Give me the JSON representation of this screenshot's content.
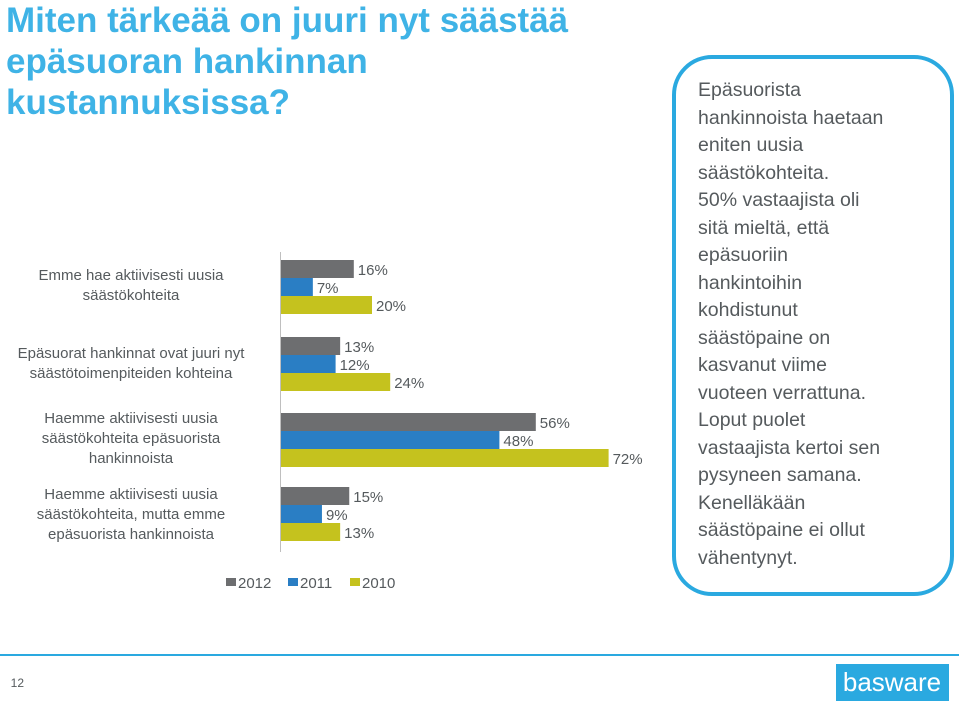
{
  "title_lines": [
    "Miten tärkeää on juuri nyt säästää",
    "epäsuoran hankinnan",
    "kustannuksissa?"
  ],
  "chart_data": {
    "type": "bar",
    "orientation": "horizontal",
    "categories": [
      [
        "Emme hae aktiivisesti uusia",
        "säästökohteita"
      ],
      [
        "Epäsuorat hankinnat ovat juuri nyt",
        "säästötoimenpiteiden kohteina"
      ],
      [
        "Haemme aktiivisesti uusia",
        "säästökohteita epäsuorista",
        "hankinnoista"
      ],
      [
        "Haemme aktiivisesti uusia",
        "säästökohteita, mutta emme",
        "epäsuorista hankinnoista"
      ]
    ],
    "series": [
      {
        "name": "2012",
        "color": "#6d6e70",
        "values": [
          16,
          13,
          56,
          15
        ],
        "labels": [
          "16%",
          "13%",
          "56%",
          "15%"
        ]
      },
      {
        "name": "2011",
        "color": "#2a7ec4",
        "values": [
          7,
          12,
          48,
          9
        ],
        "labels": [
          "7%",
          "12%",
          "48%",
          "9%"
        ]
      },
      {
        "name": "2010",
        "color": "#c5c21e",
        "values": [
          20,
          24,
          72,
          13
        ],
        "labels": [
          "20%",
          "24%",
          "72%",
          "13%"
        ]
      }
    ],
    "xlim": [
      0,
      100
    ],
    "grid": false,
    "legend_placement": "bottom"
  },
  "callout_lines": [
    "Epäsuorista",
    "hankinnoista haetaan",
    "eniten uusia",
    "säästökohteita.",
    "50% vastaajista oli",
    "sitä mieltä, että",
    "epäsuoriin",
    "hankintoihin",
    "kohdistunut",
    "säästöpaine on",
    "kasvanut viime",
    "vuoteen verrattuna.",
    "Loput puolet",
    "vastaajista kertoi sen",
    "pysyneen samana.",
    "Kenelläkään",
    "säästöpaine ei ollut",
    "vähentynyt."
  ],
  "page_number": "12",
  "logo": {
    "name": "basware-logo",
    "text": "basware",
    "color": "#2aa9e0"
  }
}
